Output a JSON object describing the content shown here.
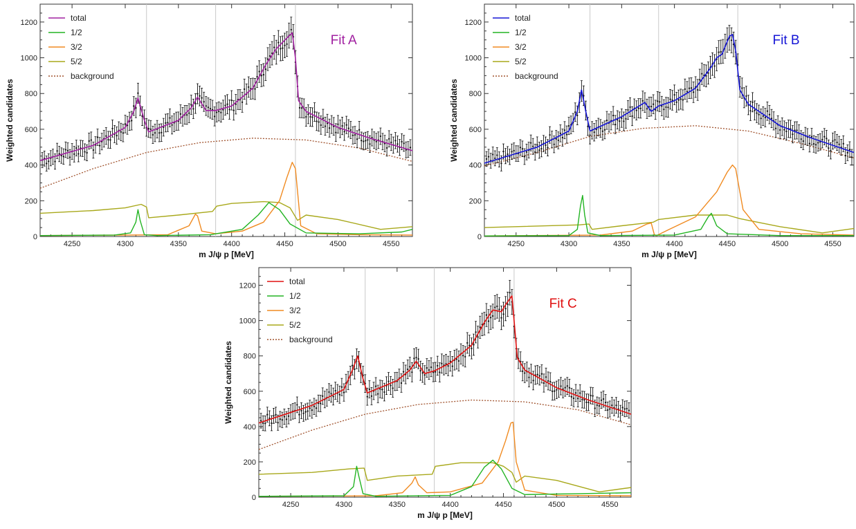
{
  "chart_data": [
    {
      "type": "line",
      "fit_label": "Fit A",
      "total_color": "#a020a0",
      "xlabel": "m_{J/ψ p} [MeV]",
      "ylabel": "Weighted candidates",
      "xlim": [
        4220,
        4570
      ],
      "ylim": [
        0,
        1300
      ],
      "xticks": [
        4250,
        4300,
        4350,
        4400,
        4450,
        4500,
        4550
      ],
      "yticks": [
        0,
        200,
        400,
        600,
        800,
        1000,
        1200
      ],
      "vlines": [
        4320,
        4385,
        4460
      ],
      "legend": [
        "total",
        "1/2",
        "3/2",
        "5/2",
        "background"
      ],
      "background": {
        "x": [
          4220,
          4270,
          4320,
          4370,
          4420,
          4470,
          4520,
          4570
        ],
        "y": [
          270,
          380,
          470,
          525,
          550,
          540,
          495,
          420
        ]
      },
      "total": {
        "x": [
          4220,
          4270,
          4300,
          4308,
          4312,
          4318,
          4322,
          4350,
          4362,
          4368,
          4376,
          4385,
          4400,
          4420,
          4432,
          4442,
          4452,
          4457,
          4460,
          4463,
          4470,
          4500,
          4530,
          4570
        ],
        "y": [
          425,
          510,
          610,
          700,
          775,
          650,
          585,
          650,
          720,
          780,
          705,
          705,
          730,
          830,
          960,
          1050,
          1110,
          1140,
          1000,
          760,
          700,
          610,
          550,
          480
        ]
      },
      "j12": {
        "x": [
          4220,
          4290,
          4305,
          4310,
          4312,
          4314,
          4318,
          4330,
          4380,
          4410,
          4425,
          4435,
          4445,
          4455,
          4470,
          4520,
          4560,
          4570
        ],
        "y": [
          5,
          8,
          20,
          80,
          150,
          90,
          10,
          5,
          10,
          40,
          120,
          190,
          150,
          70,
          20,
          15,
          25,
          40
        ]
      },
      "j32": {
        "x": [
          4220,
          4300,
          4340,
          4360,
          4366,
          4368,
          4372,
          4385,
          4410,
          4430,
          4445,
          4452,
          4457,
          4460,
          4465,
          4480,
          4520,
          4570
        ],
        "y": [
          5,
          8,
          10,
          60,
          125,
          115,
          30,
          15,
          30,
          80,
          200,
          330,
          415,
          380,
          60,
          15,
          10,
          8
        ]
      },
      "j52": {
        "x": [
          4220,
          4270,
          4300,
          4315,
          4320,
          4322,
          4350,
          4382,
          4386,
          4400,
          4430,
          4445,
          4455,
          4462,
          4470,
          4500,
          4540,
          4570
        ],
        "y": [
          130,
          145,
          160,
          180,
          165,
          105,
          120,
          140,
          170,
          185,
          195,
          190,
          160,
          90,
          120,
          95,
          40,
          55
        ]
      }
    },
    {
      "type": "line",
      "fit_label": "Fit B",
      "total_color": "#1515d6",
      "xlabel": "m_{J/ψ p} [MeV]",
      "ylabel": "Weighted candidates",
      "xlim": [
        4220,
        4570
      ],
      "ylim": [
        0,
        1300
      ],
      "xticks": [
        4250,
        4300,
        4350,
        4400,
        4450,
        4500,
        4550
      ],
      "yticks": [
        0,
        200,
        400,
        600,
        800,
        1000,
        1200
      ],
      "vlines": [
        4320,
        4385,
        4460
      ],
      "legend": [
        "total",
        "1/2",
        "3/2",
        "5/2",
        "background"
      ],
      "background": {
        "x": [
          4220,
          4270,
          4320,
          4370,
          4420,
          4470,
          4520,
          4570
        ],
        "y": [
          395,
          470,
          560,
          605,
          620,
          590,
          520,
          440
        ]
      },
      "total": {
        "x": [
          4220,
          4270,
          4300,
          4308,
          4312,
          4316,
          4320,
          4350,
          4372,
          4378,
          4385,
          4400,
          4420,
          4435,
          4440,
          4445,
          4452,
          4455,
          4458,
          4462,
          4470,
          4500,
          4530,
          4570
        ],
        "y": [
          410,
          500,
          590,
          700,
          820,
          700,
          590,
          670,
          750,
          700,
          730,
          760,
          830,
          950,
          1000,
          1020,
          1120,
          1130,
          1040,
          820,
          740,
          620,
          550,
          470
        ]
      },
      "j12": {
        "x": [
          4220,
          4300,
          4308,
          4311,
          4313,
          4315,
          4318,
          4330,
          4400,
          4425,
          4432,
          4435,
          4440,
          4450,
          4500,
          4570
        ],
        "y": [
          3,
          5,
          40,
          170,
          230,
          120,
          20,
          5,
          8,
          40,
          110,
          130,
          60,
          15,
          5,
          5
        ]
      },
      "j32": {
        "x": [
          4220,
          4330,
          4360,
          4374,
          4378,
          4381,
          4383,
          4395,
          4420,
          4440,
          4450,
          4455,
          4458,
          4465,
          4480,
          4520,
          4570
        ],
        "y": [
          3,
          8,
          30,
          70,
          75,
          10,
          5,
          40,
          110,
          250,
          360,
          400,
          380,
          150,
          40,
          15,
          8
        ]
      },
      "j52": {
        "x": [
          4220,
          4310,
          4319,
          4322,
          4350,
          4380,
          4385,
          4420,
          4450,
          4462,
          4470,
          4500,
          4540,
          4570
        ],
        "y": [
          50,
          65,
          70,
          40,
          60,
          80,
          95,
          120,
          120,
          100,
          90,
          55,
          20,
          45
        ]
      }
    },
    {
      "type": "line",
      "fit_label": "Fit C",
      "total_color": "#e01010",
      "xlabel": "m_{J/ψ p} [MeV]",
      "ylabel": "Weighted candidates",
      "xlim": [
        4220,
        4570
      ],
      "ylim": [
        0,
        1300
      ],
      "xticks": [
        4250,
        4300,
        4350,
        4400,
        4450,
        4500,
        4550
      ],
      "yticks": [
        0,
        200,
        400,
        600,
        800,
        1000,
        1200
      ],
      "vlines": [
        4320,
        4385,
        4460
      ],
      "legend": [
        "total",
        "1/2",
        "3/2",
        "5/2",
        "background"
      ],
      "background": {
        "x": [
          4220,
          4270,
          4320,
          4370,
          4420,
          4470,
          4520,
          4570
        ],
        "y": [
          270,
          380,
          470,
          525,
          550,
          540,
          495,
          410
        ]
      },
      "total": {
        "x": [
          4220,
          4270,
          4300,
          4308,
          4313,
          4318,
          4322,
          4350,
          4362,
          4368,
          4376,
          4385,
          4400,
          4420,
          4432,
          4440,
          4448,
          4452,
          4458,
          4460,
          4463,
          4470,
          4500,
          4530,
          4570
        ],
        "y": [
          420,
          520,
          610,
          720,
          800,
          670,
          590,
          660,
          720,
          770,
          700,
          715,
          760,
          860,
          990,
          1060,
          1050,
          1090,
          1140,
          1000,
          790,
          720,
          620,
          550,
          470
        ]
      },
      "j12": {
        "x": [
          4220,
          4300,
          4309,
          4312,
          4314,
          4318,
          4330,
          4400,
          4420,
          4432,
          4440,
          4448,
          4458,
          4470,
          4520,
          4570
        ],
        "y": [
          5,
          8,
          60,
          175,
          120,
          20,
          5,
          10,
          60,
          170,
          210,
          160,
          50,
          15,
          20,
          25
        ]
      },
      "j32": {
        "x": [
          4220,
          4330,
          4355,
          4364,
          4367,
          4370,
          4378,
          4400,
          4430,
          4445,
          4452,
          4457,
          4459,
          4462,
          4470,
          4500,
          4570
        ],
        "y": [
          5,
          8,
          25,
          80,
          115,
          70,
          25,
          30,
          80,
          200,
          320,
          420,
          425,
          200,
          40,
          10,
          8
        ]
      },
      "j52": {
        "x": [
          4220,
          4270,
          4305,
          4319,
          4322,
          4350,
          4383,
          4386,
          4410,
          4440,
          4450,
          4458,
          4462,
          4470,
          4500,
          4540,
          4570
        ],
        "y": [
          130,
          140,
          160,
          165,
          95,
          120,
          130,
          175,
          195,
          195,
          175,
          140,
          85,
          120,
          95,
          30,
          55
        ]
      }
    }
  ],
  "colors": {
    "j12": "#22b422",
    "j32": "#f08a20",
    "j52": "#a8a81a",
    "background": "#a0522d",
    "points": "#111111",
    "vline": "#c8c8c8"
  }
}
